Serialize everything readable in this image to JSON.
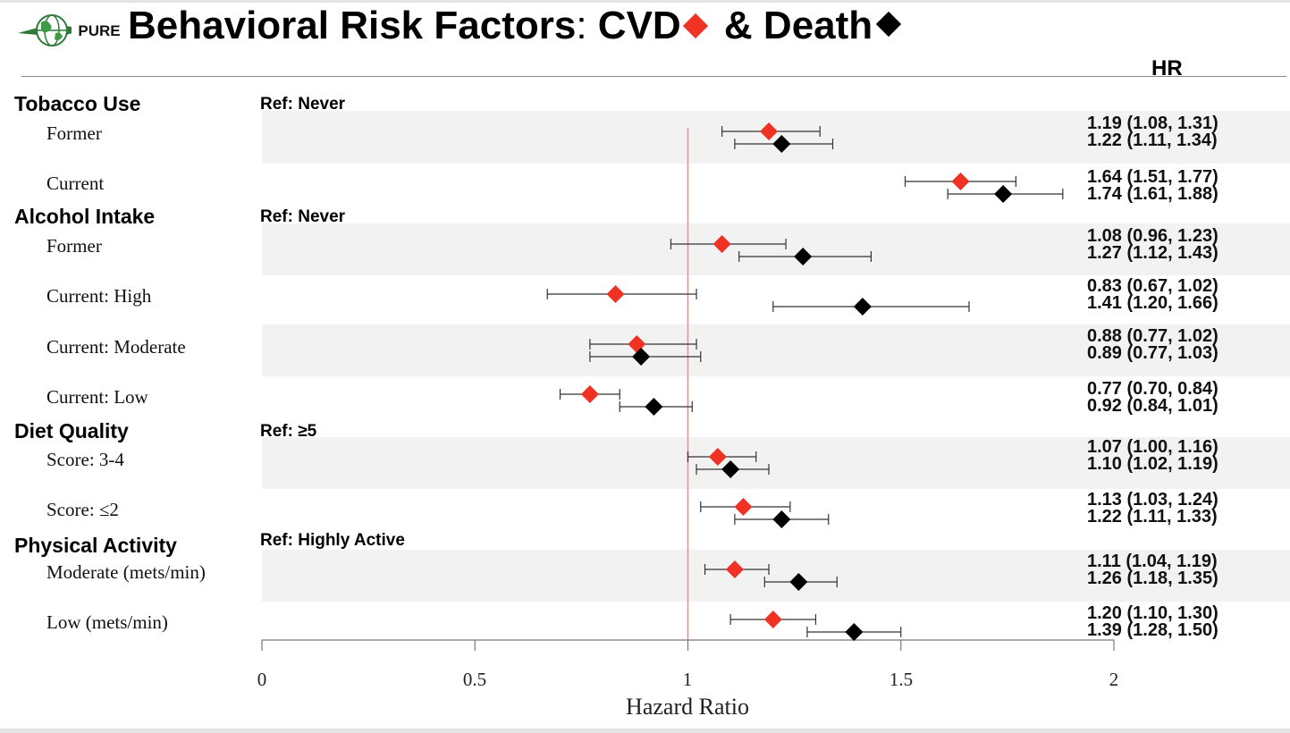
{
  "header": {
    "title_main": "Behavioral Risk Factors",
    "title_colon": ":",
    "title_cvd": " CVD",
    "title_death": " & Death",
    "logo_text": "PURE",
    "hr_column_label": "HR"
  },
  "colors": {
    "cvd": "#f03224",
    "death": "#000000",
    "reference_line": "#f08a80",
    "band": "#f2f2f2"
  },
  "legend": {
    "cvd_marker": "red-diamond",
    "death_marker": "black-diamond",
    "placement": "title"
  },
  "groups": [
    {
      "name": "Tobacco Use",
      "ref": "Ref: Never",
      "rows": [
        {
          "label": "Former",
          "cvd_text": "1.19 (1.08, 1.31)",
          "death_text": "1.22 (1.11, 1.34)"
        },
        {
          "label": "Current",
          "cvd_text": "1.64 (1.51, 1.77)",
          "death_text": "1.74 (1.61, 1.88)"
        }
      ]
    },
    {
      "name": "Alcohol Intake",
      "ref": "Ref: Never",
      "rows": [
        {
          "label": "Former",
          "cvd_text": "1.08 (0.96, 1.23)",
          "death_text": "1.27 (1.12, 1.43)"
        },
        {
          "label": "Current: High",
          "cvd_text": "0.83 (0.67, 1.02)",
          "death_text": "1.41 (1.20, 1.66)"
        },
        {
          "label": "Current: Moderate",
          "cvd_text": "0.88 (0.77, 1.02)",
          "death_text": "0.89 (0.77, 1.03)"
        },
        {
          "label": "Current: Low",
          "cvd_text": "0.77 (0.70, 0.84)",
          "death_text": "0.92 (0.84, 1.01)"
        }
      ]
    },
    {
      "name": "Diet Quality",
      "ref": "Ref: ≥5",
      "rows": [
        {
          "label": "Score: 3-4",
          "cvd_text": "1.07 (1.00, 1.16)",
          "death_text": "1.10 (1.02, 1.19)"
        },
        {
          "label": "Score: ≤2",
          "cvd_text": "1.13 (1.03, 1.24)",
          "death_text": "1.22 (1.11, 1.33)"
        }
      ]
    },
    {
      "name": "Physical Activity",
      "ref": "Ref: Highly Active",
      "rows": [
        {
          "label": "Moderate (mets/min)",
          "cvd_text": "1.11 (1.04, 1.19)",
          "death_text": "1.26 (1.18, 1.35)"
        },
        {
          "label": "Low (mets/min)",
          "cvd_text": "1.20 (1.10, 1.30)",
          "death_text": "1.39 (1.28, 1.50)"
        }
      ]
    }
  ],
  "chart_data": {
    "type": "scatter",
    "subtype": "forest-plot",
    "xlabel": "Hazard Ratio",
    "xlim": [
      0,
      2
    ],
    "xticks": [
      "0",
      "0.5",
      "1",
      "1.5",
      "2"
    ],
    "reference_line": 1,
    "categories": [
      "Former",
      "Current",
      "Former",
      "Current: High",
      "Current: Moderate",
      "Current: Low",
      "Score: 3-4",
      "Score: ≤2",
      "Moderate (mets/min)",
      "Low (mets/min)"
    ],
    "series": [
      {
        "name": "CVD",
        "values": [
          1.19,
          1.64,
          1.08,
          0.83,
          0.88,
          0.77,
          1.07,
          1.13,
          1.11,
          1.2
        ],
        "lower": [
          1.08,
          1.51,
          0.96,
          0.67,
          0.77,
          0.7,
          1.0,
          1.03,
          1.04,
          1.1
        ],
        "upper": [
          1.31,
          1.77,
          1.23,
          1.02,
          1.02,
          0.84,
          1.16,
          1.24,
          1.19,
          1.3
        ]
      },
      {
        "name": "Death",
        "values": [
          1.22,
          1.74,
          1.27,
          1.41,
          0.89,
          0.92,
          1.1,
          1.22,
          1.26,
          1.39
        ],
        "lower": [
          1.11,
          1.61,
          1.12,
          1.2,
          0.77,
          0.84,
          1.02,
          1.11,
          1.18,
          1.28
        ],
        "upper": [
          1.34,
          1.88,
          1.43,
          1.66,
          1.03,
          1.01,
          1.19,
          1.33,
          1.35,
          1.5
        ]
      }
    ]
  }
}
